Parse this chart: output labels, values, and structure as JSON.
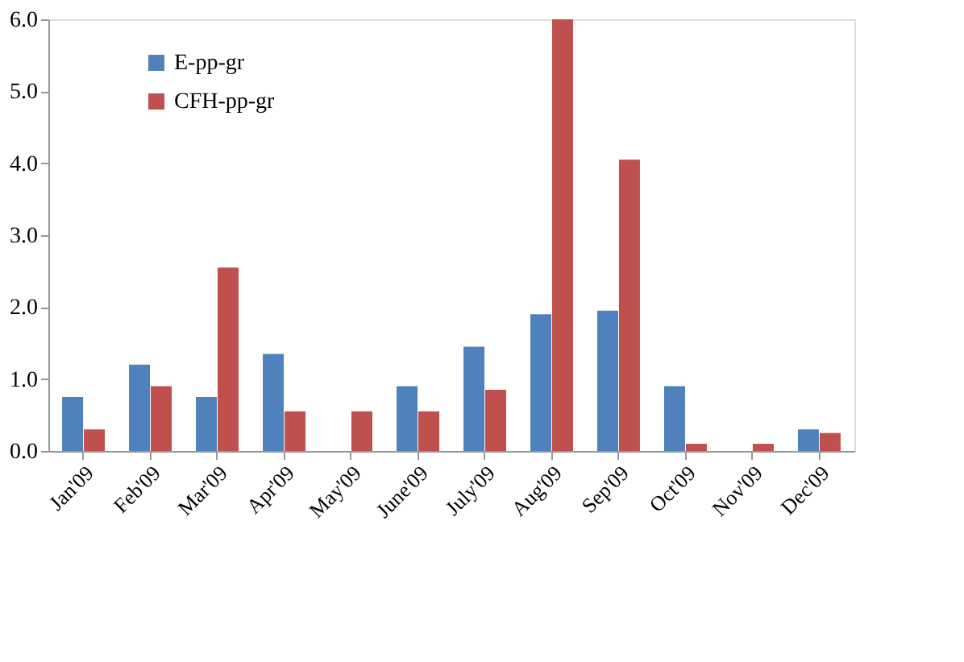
{
  "chart_data": {
    "type": "bar",
    "categories": [
      "Jan'09",
      "Feb'09",
      "Mar'09",
      "Apr'09",
      "May'09",
      "June'09",
      "July'09",
      "Aug'09",
      "Sep'09",
      "Oct'09",
      "Nov'09",
      "Dec'09"
    ],
    "series": [
      {
        "name": "E-pp-gr",
        "color": "#4f81bd",
        "values": [
          0.75,
          1.2,
          0.75,
          1.35,
          0.0,
          0.9,
          1.45,
          1.9,
          1.95,
          0.9,
          0.0,
          0.3
        ]
      },
      {
        "name": "CFH-pp-gr",
        "color": "#c0504d",
        "values": [
          0.3,
          0.9,
          2.55,
          0.55,
          0.55,
          0.55,
          0.85,
          6.0,
          4.05,
          0.1,
          0.1,
          0.25
        ]
      }
    ],
    "ylim": [
      0,
      6
    ],
    "yticks": [
      {
        "value": 0,
        "label": "0.0"
      },
      {
        "value": 1,
        "label": "1.0"
      },
      {
        "value": 2,
        "label": "2.0"
      },
      {
        "value": 3,
        "label": "3.0"
      },
      {
        "value": 4,
        "label": "4.0"
      },
      {
        "value": 5,
        "label": "5.0"
      },
      {
        "value": 6,
        "label": "6.0"
      }
    ],
    "grid": false,
    "legend": "top left"
  }
}
